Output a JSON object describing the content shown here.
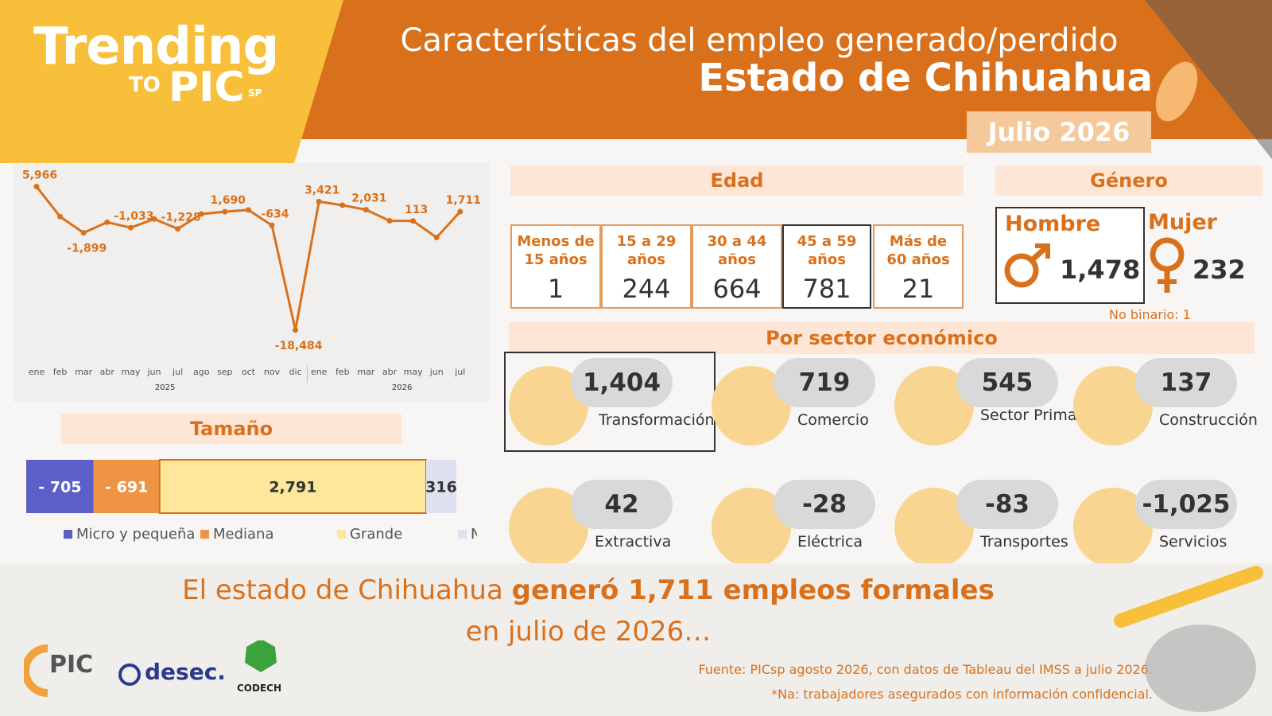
{
  "header": {
    "brand": "Trending",
    "brand_to": "TO",
    "brand_pic": "PIC",
    "brand_sp": "SP",
    "title": "Características del empleo generado/perdido",
    "subtitle": "Estado de Chihuahua",
    "date": "Julio 2026"
  },
  "chart_data": [
    {
      "type": "line",
      "categories": [
        "ene",
        "feb",
        "mar",
        "abr",
        "may",
        "jun",
        "jul",
        "ago",
        "sep",
        "oct",
        "nov",
        "dic",
        "ene",
        "feb",
        "mar",
        "abr",
        "may",
        "jun",
        "jul"
      ],
      "year_labels": [
        "2025",
        "2026"
      ],
      "values": [
        5966,
        850,
        -1899,
        -100,
        -1033,
        450,
        -1228,
        1300,
        1690,
        2000,
        -634,
        -18484,
        3421,
        2800,
        2031,
        150,
        113,
        -2700,
        1711
      ],
      "value_labels": [
        "5,966",
        null,
        "-1,899",
        null,
        "-1,033",
        null,
        "-1,228",
        null,
        "1,690",
        null,
        "-634",
        "-18,484",
        "3,421",
        null,
        "2,031",
        null,
        "113",
        null,
        "1,711"
      ],
      "color": "#d9711c",
      "ylim": [
        -20000,
        7000
      ]
    },
    {
      "type": "bar",
      "title": "Tamaño",
      "stacked": true,
      "orientation": "horizontal",
      "series": [
        {
          "name": "Micro y pequeña",
          "color": "#5b5fc7",
          "values": [
            -705
          ],
          "value_labels": [
            "- 705"
          ]
        },
        {
          "name": "Mediana",
          "color": "#ef9445",
          "values": [
            -691
          ],
          "value_labels": [
            "- 691"
          ]
        },
        {
          "name": "Grande",
          "color": "#fde79a",
          "values": [
            2791
          ],
          "value_labels": [
            "2,791"
          ]
        },
        {
          "name": "NA*",
          "color": "#dfe0f0",
          "values": [
            316
          ],
          "value_labels": [
            "316"
          ]
        }
      ]
    }
  ],
  "edad": {
    "title": "Edad",
    "groups": [
      {
        "label": "Menos de 15 años",
        "value": "1"
      },
      {
        "label": "15 a 29 años",
        "value": "244"
      },
      {
        "label": "30 a 44 años",
        "value": "664"
      },
      {
        "label": "45 a 59 años",
        "value": "781"
      },
      {
        "label": "Más de 60 años",
        "value": "21"
      }
    ]
  },
  "genero": {
    "title": "Género",
    "hombre": {
      "label": "Hombre",
      "value": "1,478"
    },
    "mujer": {
      "label": "Mujer",
      "value": "232"
    },
    "note": "No binario: 1"
  },
  "sector": {
    "title": "Por sector económico",
    "items": [
      {
        "value": "1,404",
        "label": "Transformación"
      },
      {
        "value": "719",
        "label": "Comercio"
      },
      {
        "value": "545",
        "label": "Sector Primario"
      },
      {
        "value": "137",
        "label": "Construcción"
      },
      {
        "value": "42",
        "label": "Extractiva"
      },
      {
        "value": "-28",
        "label": "Eléctrica"
      },
      {
        "value": "-83",
        "label": "Transportes"
      },
      {
        "value": "-1,025",
        "label": "Servicios"
      }
    ]
  },
  "footer": {
    "summary_start": "El estado de Chihuahua ",
    "summary_bold": "generó 1,711 empleos formales",
    "summary_end": "en julio de 2026…",
    "source": "Fuente: PICsp agosto 2026, con datos de Tableau del IMSS a julio 2026.",
    "note": "*Na: trabajadores asegurados con información confidencial.",
    "logos": [
      "PIC",
      "desec.",
      "CODECH"
    ]
  }
}
